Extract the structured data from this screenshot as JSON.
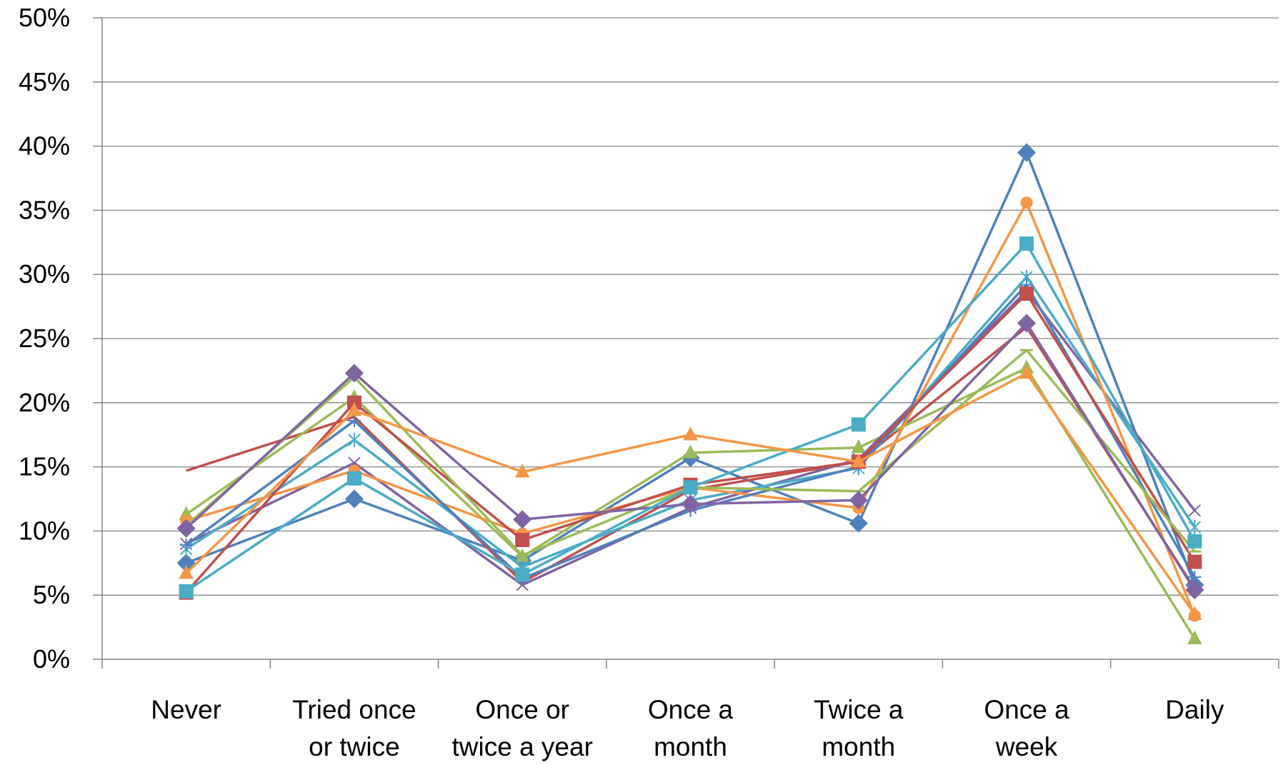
{
  "chart_data": {
    "type": "line",
    "title": "",
    "xlabel": "",
    "ylabel": "",
    "categories": [
      [
        "Never"
      ],
      [
        "Tried once",
        "or twice"
      ],
      [
        "Once or",
        "twice a year"
      ],
      [
        "Once a",
        "month"
      ],
      [
        "Twice a",
        "month"
      ],
      [
        "Once a",
        "week"
      ],
      [
        "Daily"
      ]
    ],
    "ylim": [
      0,
      50
    ],
    "y_ticks": [
      0,
      5,
      10,
      15,
      20,
      25,
      30,
      35,
      40,
      45,
      50
    ],
    "y_tick_labels": [
      "0%",
      "5%",
      "10%",
      "15%",
      "20%",
      "25%",
      "30%",
      "35%",
      "40%",
      "45%",
      "50%"
    ],
    "grid": "horizontal",
    "legend": "none",
    "series": [
      {
        "color": "#4F81BD",
        "marker": "diamond",
        "values": [
          7.5,
          12.5,
          7.7,
          15.7,
          10.6,
          39.5,
          5.8
        ]
      },
      {
        "color": "#C0504D",
        "marker": "none",
        "values": [
          14.7,
          18.9,
          6.0,
          13.2,
          15.4,
          25.9,
          5.5
        ]
      },
      {
        "color": "#9BBB59",
        "marker": "triangle",
        "values": [
          11.3,
          20.4,
          8.0,
          16.1,
          16.5,
          22.7,
          1.6
        ]
      },
      {
        "color": "#8064A2",
        "marker": "x",
        "values": [
          9.0,
          15.3,
          5.8,
          11.8,
          15.6,
          28.7,
          11.6
        ]
      },
      {
        "color": "#4BACC6",
        "marker": "star",
        "values": [
          8.6,
          17.1,
          7.2,
          12.4,
          14.9,
          29.8,
          10.3
        ]
      },
      {
        "color": "#F79646",
        "marker": "circle",
        "values": [
          10.8,
          14.7,
          9.8,
          13.4,
          11.8,
          35.6,
          3.4
        ]
      },
      {
        "color": "#4F81BD",
        "marker": "plus",
        "values": [
          8.9,
          18.6,
          6.3,
          11.6,
          15.0,
          29.2,
          6.4
        ]
      },
      {
        "color": "#C0504D",
        "marker": "square",
        "values": [
          5.2,
          20.0,
          9.3,
          13.6,
          15.4,
          28.5,
          7.6
        ]
      },
      {
        "color": "#9BBB59",
        "marker": "dash",
        "values": [
          10.4,
          22.0,
          8.1,
          13.4,
          13.1,
          24.1,
          8.4
        ]
      },
      {
        "color": "#8064A2",
        "marker": "diamond",
        "values": [
          10.2,
          22.3,
          10.9,
          12.1,
          12.4,
          26.2,
          5.4
        ]
      },
      {
        "color": "#4BACC6",
        "marker": "square",
        "values": [
          5.3,
          14.1,
          6.6,
          13.4,
          18.3,
          32.4,
          9.2
        ]
      },
      {
        "color": "#F79646",
        "marker": "triangle",
        "values": [
          6.7,
          19.4,
          14.6,
          17.5,
          15.4,
          22.3,
          3.5
        ]
      }
    ]
  }
}
